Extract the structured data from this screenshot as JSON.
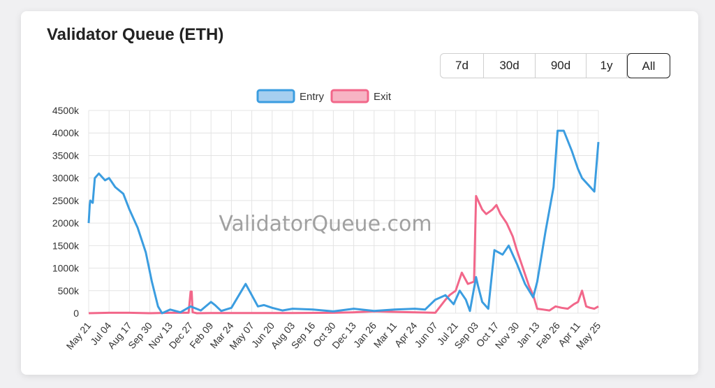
{
  "card": {
    "title": "Validator Queue (ETH)"
  },
  "range_buttons": [
    {
      "label": "7d",
      "active": false
    },
    {
      "label": "30d",
      "active": false
    },
    {
      "label": "90d",
      "active": false
    },
    {
      "label": "1y",
      "active": false
    },
    {
      "label": "All",
      "active": true
    }
  ],
  "watermark": "ValidatorQueue.com",
  "colors": {
    "entry": "#3b9de0",
    "entry_fill": "#a6cff0",
    "exit": "#f2678a",
    "exit_fill": "#f7b4c4",
    "grid": "#e4e4e4"
  },
  "chart_data": {
    "type": "line",
    "title": "",
    "xlabel": "",
    "ylabel": "",
    "ylim": [
      0,
      4500
    ],
    "ytick_labels": [
      "0",
      "500k",
      "1000k",
      "1500k",
      "2000k",
      "2500k",
      "3000k",
      "3500k",
      "4000k",
      "4500k"
    ],
    "categories": [
      "May 21",
      "Jul 04",
      "Aug 17",
      "Sep 30",
      "Nov 13",
      "Dec 27",
      "Feb 09",
      "Mar 24",
      "May 07",
      "Jun 20",
      "Aug 03",
      "Sep 16",
      "Oct 30",
      "Dec 13",
      "Jan 26",
      "Mar 11",
      "Apr 24",
      "Jun 07",
      "Jul 21",
      "Sep 03",
      "Oct 17",
      "Nov 30",
      "Jan 13",
      "Feb 26",
      "Apr 11",
      "May 25"
    ],
    "legend": {
      "position": "top",
      "entries": [
        "Entry",
        "Exit"
      ]
    },
    "grid": true,
    "series": [
      {
        "name": "Entry",
        "x": [
          0,
          0.05,
          0.08,
          0.2,
          0.3,
          0.5,
          0.8,
          1.0,
          1.3,
          1.7,
          2.0,
          2.4,
          2.8,
          3.1,
          3.4,
          3.6,
          4.0,
          4.5,
          5.0,
          5.5,
          6.0,
          6.2,
          6.5,
          7.0,
          7.5,
          7.7,
          8.0,
          8.3,
          8.6,
          9.0,
          9.5,
          10.0,
          11.0,
          12.0,
          13.0,
          14.0,
          15.0,
          16.0,
          16.5,
          17.0,
          17.5,
          17.9,
          18.2,
          18.5,
          18.7,
          19.0,
          19.1,
          19.3,
          19.6,
          19.9,
          20.3,
          20.6,
          21.0,
          21.4,
          21.8,
          22.0,
          22.4,
          22.8,
          23.0,
          23.3,
          23.7,
          24.0,
          24.2,
          24.5,
          24.8,
          25.0
        ],
        "values": [
          2000,
          2400,
          2500,
          2450,
          3000,
          3100,
          2950,
          3000,
          2800,
          2650,
          2300,
          1900,
          1350,
          700,
          150,
          0,
          80,
          20,
          150,
          60,
          250,
          180,
          50,
          120,
          500,
          650,
          400,
          150,
          180,
          120,
          60,
          100,
          80,
          40,
          100,
          50,
          80,
          100,
          80,
          300,
          400,
          200,
          500,
          300,
          50,
          800,
          600,
          250,
          100,
          1400,
          1300,
          1500,
          1100,
          650,
          350,
          700,
          1800,
          2800,
          4050,
          4050,
          3600,
          3200,
          3000,
          2850,
          2700,
          3800
        ]
      },
      {
        "name": "Exit",
        "x": [
          0,
          1.0,
          2.0,
          3.0,
          4.0,
          4.9,
          5.0,
          5.05,
          5.1,
          5.3,
          6.0,
          8.0,
          10.0,
          12.0,
          13.0,
          14.0,
          15.0,
          16.0,
          17.0,
          17.5,
          17.7,
          18.0,
          18.3,
          18.6,
          18.9,
          19.0,
          19.1,
          19.3,
          19.5,
          19.8,
          20.0,
          20.2,
          20.5,
          20.8,
          21.0,
          21.3,
          21.6,
          21.8,
          22.0,
          22.3,
          22.6,
          22.9,
          23.2,
          23.5,
          23.8,
          24.0,
          24.2,
          24.4,
          24.6,
          24.8,
          25.0
        ],
        "values": [
          0,
          10,
          10,
          0,
          10,
          10,
          480,
          480,
          20,
          0,
          5,
          5,
          5,
          10,
          20,
          40,
          30,
          20,
          10,
          300,
          400,
          500,
          900,
          650,
          700,
          2600,
          2500,
          2300,
          2200,
          2300,
          2400,
          2200,
          2000,
          1700,
          1400,
          1000,
          600,
          400,
          100,
          80,
          60,
          150,
          120,
          100,
          200,
          250,
          500,
          150,
          120,
          100,
          150
        ]
      }
    ]
  }
}
